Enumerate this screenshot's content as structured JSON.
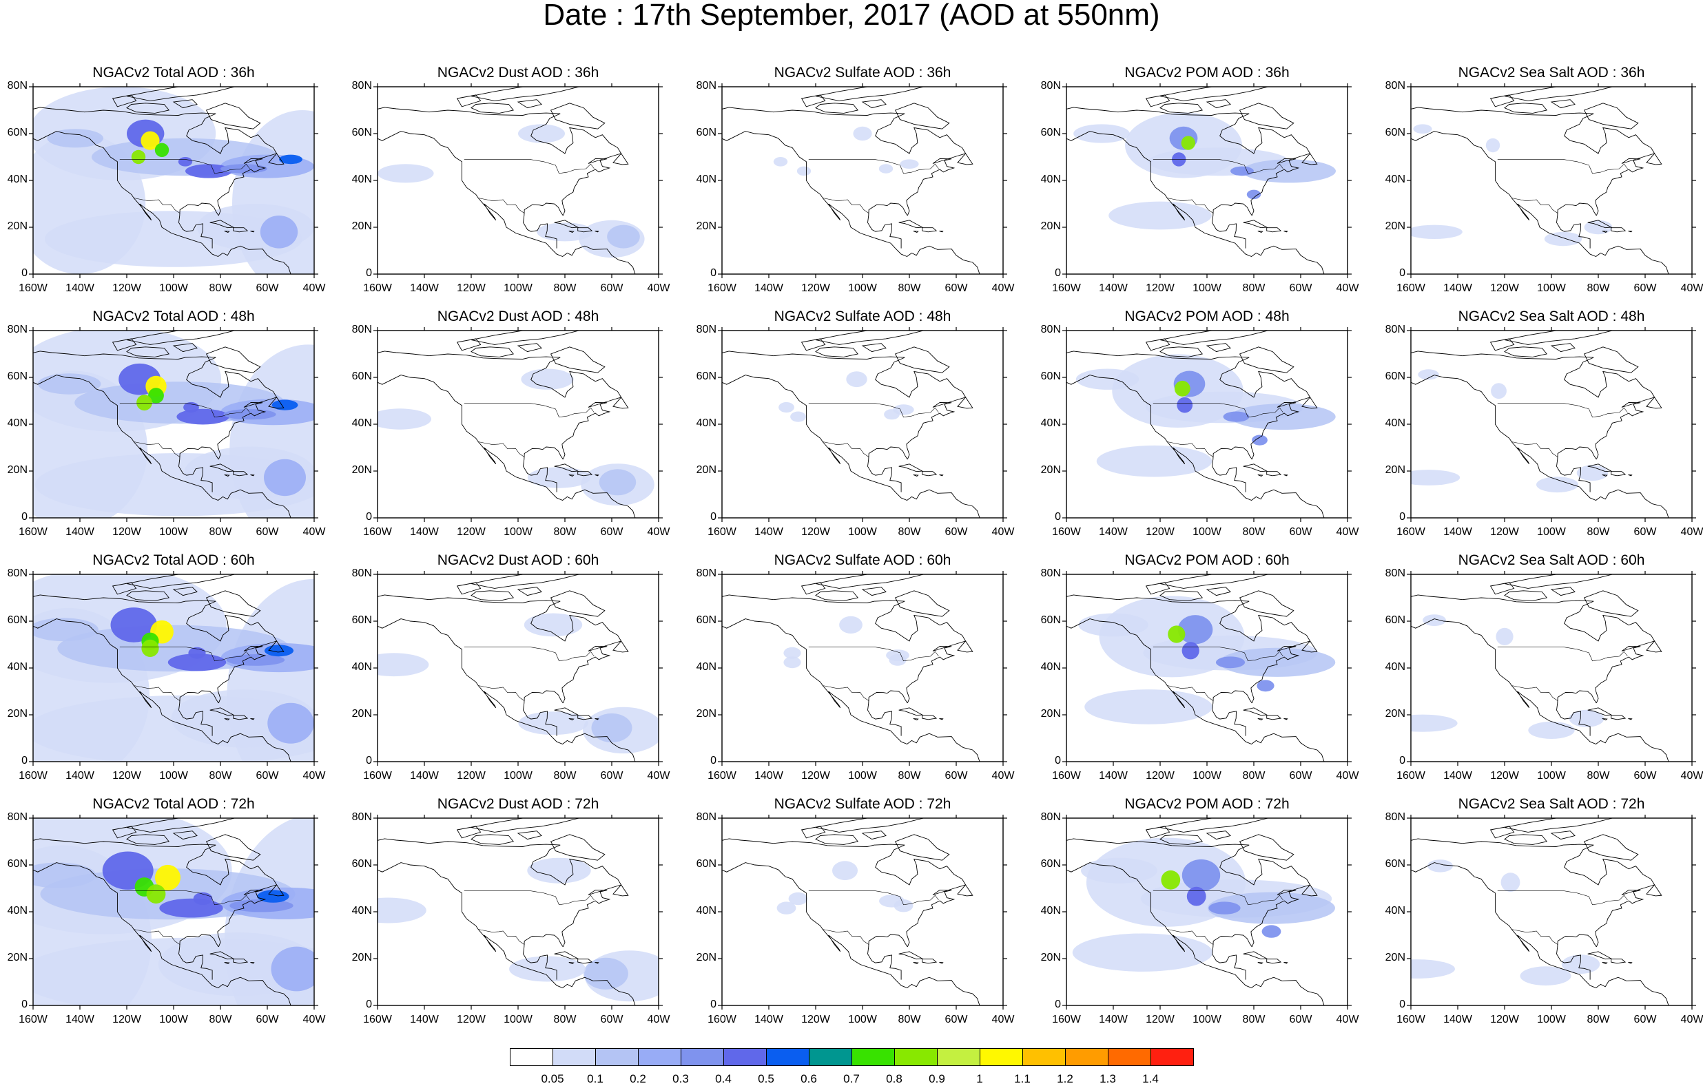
{
  "title": "Date : 17th September, 2017 (AOD at 550nm)",
  "lat_ticks": [
    "80N",
    "60N",
    "40N",
    "20N",
    "0"
  ],
  "lon_ticks": [
    "160W",
    "140W",
    "120W",
    "100W",
    "80W",
    "60W",
    "40W"
  ],
  "panels": [
    [
      "NGACv2 Total AOD : 36h",
      "NGACv2 Dust AOD : 36h",
      "NGACv2 Sulfate AOD : 36h",
      "NGACv2 POM AOD : 36h",
      "NGACv2 Sea Salt AOD : 36h"
    ],
    [
      "NGACv2 Total AOD : 48h",
      "NGACv2 Dust AOD : 48h",
      "NGACv2 Sulfate AOD : 48h",
      "NGACv2 POM AOD : 48h",
      "NGACv2 Sea Salt AOD : 48h"
    ],
    [
      "NGACv2 Total AOD : 60h",
      "NGACv2 Dust AOD : 60h",
      "NGACv2 Sulfate AOD : 60h",
      "NGACv2 POM AOD : 60h",
      "NGACv2 Sea Salt AOD : 60h"
    ],
    [
      "NGACv2 Total AOD : 72h",
      "NGACv2 Dust AOD : 72h",
      "NGACv2 Sulfate AOD : 72h",
      "NGACv2 POM AOD : 72h",
      "NGACv2 Sea Salt  AOD : 72h"
    ]
  ],
  "colorbar": {
    "labels": [
      "0.05",
      "0.1",
      "0.2",
      "0.3",
      "0.4",
      "0.5",
      "0.6",
      "0.7",
      "0.8",
      "0.9",
      "1",
      "1.1",
      "1.2",
      "1.3",
      "1.4"
    ],
    "colors": [
      "#ffffff",
      "#d2dcf8",
      "#b4c4f4",
      "#98acf6",
      "#7f93ee",
      "#6068ea",
      "#0a5ef0",
      "#009690",
      "#38e200",
      "#88e800",
      "#c4f040",
      "#fff800",
      "#ffc000",
      "#ff9c00",
      "#ff6a00",
      "#ff2010"
    ]
  }
}
